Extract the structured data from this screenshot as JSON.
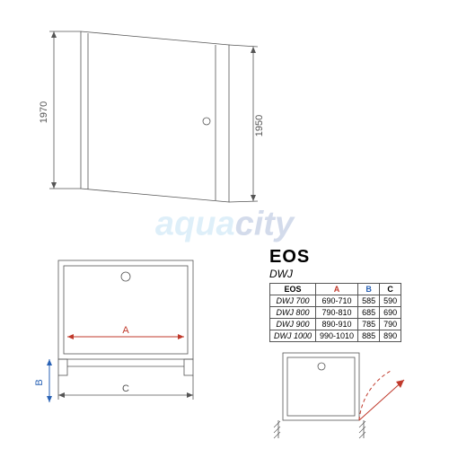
{
  "product": {
    "title": "EOS",
    "subtitle": "DWJ"
  },
  "dimensions": {
    "height_outer": "1970",
    "height_inner": "1950"
  },
  "labels": {
    "A": "A",
    "B": "B",
    "C": "C"
  },
  "colors": {
    "line": "#555555",
    "red": "#c0392b",
    "blue": "#2962b5",
    "watermark1": "#6fb8e6",
    "watermark2": "#3d5fa8"
  },
  "watermark": {
    "part1": "aqua",
    "part2": "city"
  },
  "table": {
    "head": [
      "EOS",
      "A",
      "B",
      "C"
    ],
    "head_colors": [
      "",
      "#c0392b",
      "#2962b5",
      ""
    ],
    "rows": [
      [
        "DWJ 700",
        "690-710",
        "585",
        "590"
      ],
      [
        "DWJ 800",
        "790-810",
        "685",
        "690"
      ],
      [
        "DWJ 900",
        "890-910",
        "785",
        "790"
      ],
      [
        "DWJ 1000",
        "990-1010",
        "885",
        "890"
      ]
    ]
  }
}
